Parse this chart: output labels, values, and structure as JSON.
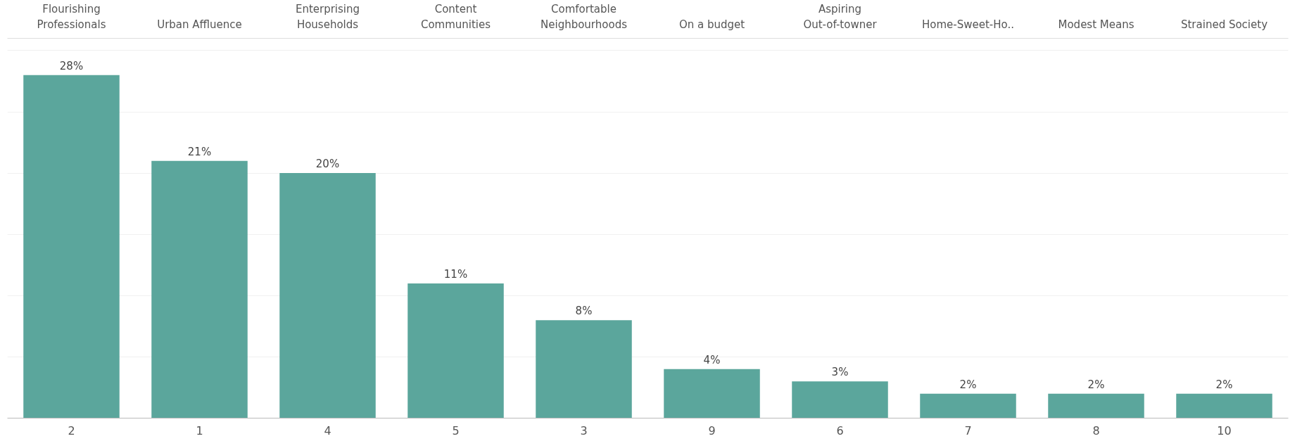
{
  "chart_data": {
    "type": "bar",
    "categories": [
      "Flourishing Professionals",
      "Urban Affluence",
      "Enterprising Households",
      "Content Communities",
      "Comfortable Neighbourhoods",
      "On a budget",
      "Aspiring Out-of-towner",
      "Home-Sweet-Ho..",
      "Modest Means",
      "Strained Society"
    ],
    "values": [
      28,
      21,
      20,
      11,
      8,
      4,
      3,
      2,
      2,
      2
    ],
    "value_labels": [
      "28%",
      "21%",
      "20%",
      "11%",
      "8%",
      "4%",
      "3%",
      "2%",
      "2%",
      "2%"
    ],
    "color": "#5ba69c",
    "ylim": [
      0,
      31
    ],
    "yticks": [
      {
        "value": 0,
        "label": null
      },
      {
        "value": 5,
        "label": null
      },
      {
        "value": 10,
        "label": null
      },
      {
        "value": 15,
        "label": null
      },
      {
        "value": 20,
        "label": null
      },
      {
        "value": 25,
        "label": null
      },
      {
        "value": 30,
        "label": null
      }
    ],
    "grid": "y",
    "tick_labels": "x",
    "annotations": [
      "2",
      "1",
      "4",
      "5",
      "3",
      "9",
      "6",
      "7",
      "8",
      "10"
    ]
  }
}
